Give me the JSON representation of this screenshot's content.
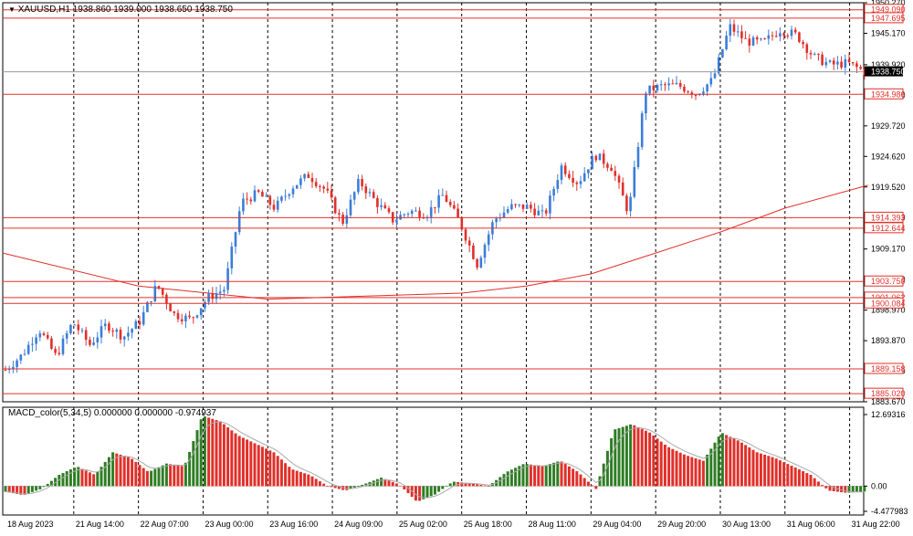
{
  "header": {
    "symbol": "XAUUSD,H1",
    "ohlc": "1938.860 1939.000 1938.650 1938.750"
  },
  "indicator": {
    "label": "MACD_color(5,34,5) 0.000000 0.000000 -0.974937"
  },
  "colors": {
    "bull": "#3b7dd8",
    "bear": "#e0302a",
    "level": "#e0302a",
    "ma": "#e0302a",
    "macd_up": "#2f7d24",
    "macd_down": "#e0302a",
    "grid": "#000000",
    "current_price_bg": "#000000"
  },
  "chart_data": {
    "type": "candlestick",
    "price_axis_ticks": [
      "1950.270",
      "1945.170",
      "1939.920",
      "1934.820",
      "1929.720",
      "1924.620",
      "1919.520",
      "1914.420",
      "1909.170",
      "1904.070",
      "1898.970",
      "1893.870",
      "1888.770",
      "1883.670"
    ],
    "ylim": [
      1883.67,
      1950.27
    ],
    "time_axis_ticks": [
      "18 Aug 2023",
      "21 Aug 14:00",
      "22 Aug 07:00",
      "23 Aug 00:00",
      "23 Aug 16:00",
      "24 Aug 09:00",
      "25 Aug 02:00",
      "25 Aug 18:00",
      "28 Aug 11:00",
      "29 Aug 04:00",
      "29 Aug 20:00",
      "30 Aug 13:00",
      "31 Aug 06:00",
      "31 Aug 22:00"
    ],
    "current_price": "1938.750",
    "levels": [
      "1949.090",
      "1947.695",
      "1934.986",
      "1914.393",
      "1912.644",
      "1903.750",
      "1901.062",
      "1900.084",
      "1889.158",
      "1885.020"
    ],
    "close_path": [
      1889.0,
      1891.5,
      1895.8,
      1891.2,
      1897.0,
      1893.2,
      1896.6,
      1894.5,
      1897.2,
      1903.2,
      1898.3,
      1897.4,
      1901.0,
      1902.5,
      1917.0,
      1918.5,
      1916.0,
      1919.5,
      1921.5,
      1919.0,
      1913.5,
      1920.5,
      1917.0,
      1914.0,
      1915.5,
      1915.0,
      1918.2,
      1913.5,
      1906.6,
      1914.0,
      1916.2,
      1916.2,
      1914.7,
      1923.0,
      1920.2,
      1924.9,
      1922.8,
      1915.2,
      1935.5,
      1936.4,
      1936.4,
      1935.1,
      1937.4,
      1946.3,
      1943.8,
      1943.6,
      1945.8,
      1944.8,
      1941.2,
      1939.9,
      1940.2,
      1938.8
    ],
    "moving_average": {
      "x_positions": [
        "18 Aug 2023",
        "22 Aug 07:00",
        "23 Aug 16:00",
        "25 Aug 18:00",
        "28 Aug 11:00",
        "29 Aug 04:00",
        "29 Aug 20:00",
        "30 Aug 13:00",
        "31 Aug 06:00",
        "31 Aug 22:00"
      ],
      "values": [
        1908.5,
        1903.0,
        1900.8,
        1901.8,
        1903.0,
        1905.0,
        1908.5,
        1912.0,
        1916.0,
        1919.8
      ]
    },
    "macd": {
      "ylim": [
        -4.477983,
        12.69316
      ],
      "ticks": [
        "12.69316",
        "0.00",
        "-4.477983"
      ],
      "histogram_path": [
        -1.0,
        -1.6,
        -0.5,
        2.0,
        3.5,
        2.0,
        6.0,
        5.0,
        2.5,
        4.0,
        3.5,
        12.5,
        11.5,
        9.0,
        7.5,
        6.0,
        3.0,
        2.0,
        0.0,
        -0.8,
        0.3,
        1.5,
        0.3,
        -2.8,
        -1.5,
        0.8,
        0.5,
        0.0,
        2.5,
        4.0,
        3.5,
        4.5,
        2.5,
        -0.5,
        10.0,
        11.0,
        9.5,
        7.0,
        5.5,
        4.5,
        9.5,
        8.0,
        6.0,
        5.0,
        3.5,
        2.0,
        -0.8,
        -1.2,
        -0.97
      ]
    }
  }
}
